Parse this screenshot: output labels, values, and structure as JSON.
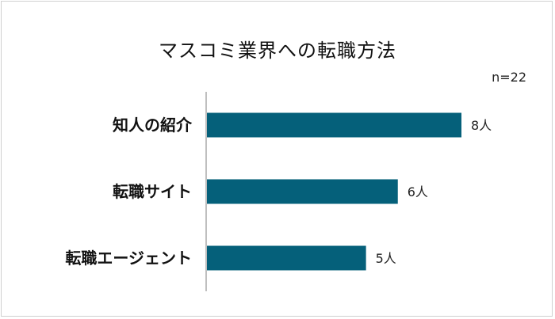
{
  "chart_data": {
    "type": "bar",
    "orientation": "horizontal",
    "title": "マスコミ業界への転職方法",
    "note": "n=22",
    "categories": [
      "知人の紹介",
      "転職サイト",
      "転職エージェント"
    ],
    "values": [
      8,
      6,
      5
    ],
    "value_labels": [
      "8人",
      "6人",
      "5人"
    ],
    "xlim": [
      0,
      8
    ],
    "grid": false,
    "legend": "none",
    "bar_color": "#05607a",
    "axis_color": "#bfbfbf"
  }
}
